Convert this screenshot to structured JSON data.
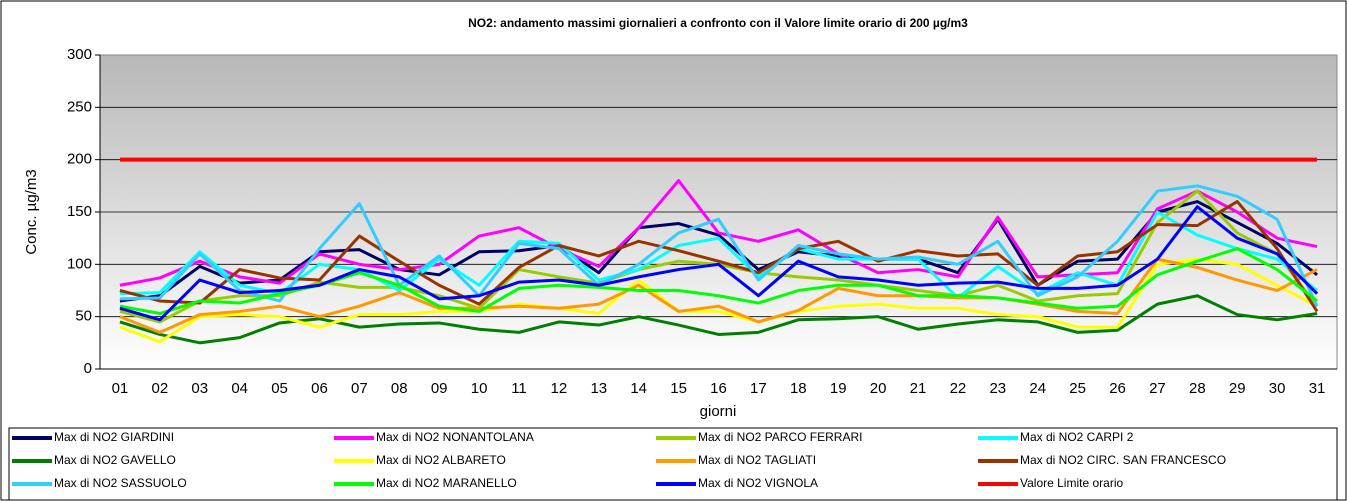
{
  "chart_data": {
    "type": "line",
    "title": "NO2: andamento massimi  giornalieri a confronto con il Valore  limite orario di 200 µg/m3",
    "y_label": "Conc. µg/m3",
    "x_label": "giorni",
    "categories": [
      "01",
      "02",
      "03",
      "04",
      "05",
      "06",
      "07",
      "08",
      "09",
      "10",
      "11",
      "12",
      "13",
      "14",
      "15",
      "16",
      "17",
      "18",
      "19",
      "20",
      "21",
      "22",
      "23",
      "24",
      "25",
      "26",
      "27",
      "28",
      "29",
      "30",
      "31"
    ],
    "ylim": [
      0,
      300
    ],
    "yticks": [
      0,
      50,
      100,
      150,
      200,
      250,
      300
    ],
    "grid": true,
    "series": [
      {
        "name": "Max di NO2  GIARDINI",
        "color": "#000066",
        "values": [
          65,
          70,
          98,
          82,
          85,
          112,
          114,
          95,
          90,
          112,
          113,
          118,
          92,
          135,
          139,
          128,
          95,
          112,
          108,
          105,
          105,
          92,
          143,
          80,
          103,
          105,
          150,
          160,
          140,
          120,
          90
        ]
      },
      {
        "name": "Max di NO2  NONANTOLANA",
        "color": "#ff00ff",
        "values": [
          80,
          87,
          103,
          88,
          82,
          110,
          100,
          95,
          100,
          127,
          135,
          115,
          98,
          135,
          180,
          130,
          122,
          133,
          110,
          92,
          95,
          88,
          145,
          88,
          90,
          92,
          153,
          170,
          150,
          125,
          117
        ]
      },
      {
        "name": "Max di NO2  PARCO FERRARI",
        "color": "#99cc00",
        "values": [
          55,
          45,
          65,
          70,
          70,
          83,
          78,
          78,
          70,
          58,
          95,
          88,
          82,
          95,
          103,
          100,
          92,
          88,
          85,
          80,
          75,
          70,
          80,
          65,
          70,
          72,
          140,
          170,
          130,
          110,
          60
        ]
      },
      {
        "name": "Max di NO2 CARPI 2",
        "color": "#00ffff",
        "values": [
          72,
          73,
          112,
          80,
          72,
          100,
          95,
          75,
          105,
          80,
          122,
          120,
          85,
          95,
          118,
          125,
          88,
          115,
          105,
          105,
          105,
          68,
          98,
          72,
          92,
          80,
          150,
          128,
          115,
          105,
          75
        ]
      },
      {
        "name": "Max di NO2 GAVELLO",
        "color": "#008000",
        "values": [
          45,
          33,
          25,
          30,
          44,
          48,
          40,
          43,
          44,
          38,
          35,
          45,
          42,
          50,
          42,
          33,
          35,
          47,
          48,
          50,
          38,
          43,
          47,
          45,
          35,
          37,
          62,
          70,
          52,
          47,
          53
        ]
      },
      {
        "name": "Max di NO2 ALBARETO",
        "color": "#ffff00",
        "values": [
          40,
          26,
          50,
          52,
          50,
          40,
          52,
          52,
          55,
          55,
          62,
          58,
          53,
          85,
          55,
          55,
          45,
          55,
          60,
          62,
          58,
          58,
          52,
          50,
          40,
          40,
          100,
          105,
          100,
          80,
          60
        ]
      },
      {
        "name": "Max di NO2 TAGLIATI",
        "color": "#ff9900",
        "values": [
          50,
          35,
          52,
          55,
          60,
          50,
          60,
          73,
          58,
          58,
          60,
          58,
          62,
          80,
          55,
          60,
          45,
          56,
          77,
          70,
          70,
          68,
          68,
          62,
          55,
          53,
          105,
          97,
          85,
          75,
          95
        ]
      },
      {
        "name": "Max di NO2 CIRC. SAN FRANCESCO",
        "color": "#993300",
        "values": [
          75,
          65,
          63,
          95,
          87,
          85,
          127,
          103,
          80,
          62,
          97,
          118,
          108,
          122,
          113,
          103,
          92,
          115,
          122,
          103,
          113,
          108,
          110,
          80,
          108,
          112,
          138,
          137,
          160,
          115,
          55
        ]
      },
      {
        "name": "Max di NO2 SASSUOLO",
        "color": "#33ccff",
        "values": [
          67,
          68,
          110,
          75,
          65,
          115,
          158,
          80,
          108,
          70,
          120,
          115,
          80,
          100,
          130,
          143,
          85,
          118,
          110,
          105,
          107,
          100,
          122,
          70,
          88,
          122,
          170,
          175,
          165,
          143,
          60
        ]
      },
      {
        "name": "Max di  NO2 MARANELLO",
        "color": "#00ff00",
        "values": [
          60,
          53,
          65,
          63,
          72,
          80,
          92,
          80,
          60,
          55,
          77,
          80,
          78,
          75,
          75,
          70,
          63,
          75,
          80,
          80,
          70,
          70,
          68,
          63,
          58,
          60,
          90,
          103,
          115,
          95,
          65
        ]
      },
      {
        "name": "Max di NO2 VIGNOLA",
        "color": "#0000ff",
        "values": [
          58,
          47,
          85,
          73,
          75,
          80,
          95,
          88,
          67,
          70,
          83,
          85,
          80,
          88,
          95,
          100,
          70,
          103,
          88,
          85,
          80,
          82,
          83,
          77,
          77,
          80,
          105,
          155,
          125,
          110,
          72
        ]
      },
      {
        "name": "Valore Limite orario",
        "color": "#ff0000",
        "values": [
          200,
          200,
          200,
          200,
          200,
          200,
          200,
          200,
          200,
          200,
          200,
          200,
          200,
          200,
          200,
          200,
          200,
          200,
          200,
          200,
          200,
          200,
          200,
          200,
          200,
          200,
          200,
          200,
          200,
          200,
          200
        ]
      }
    ]
  }
}
